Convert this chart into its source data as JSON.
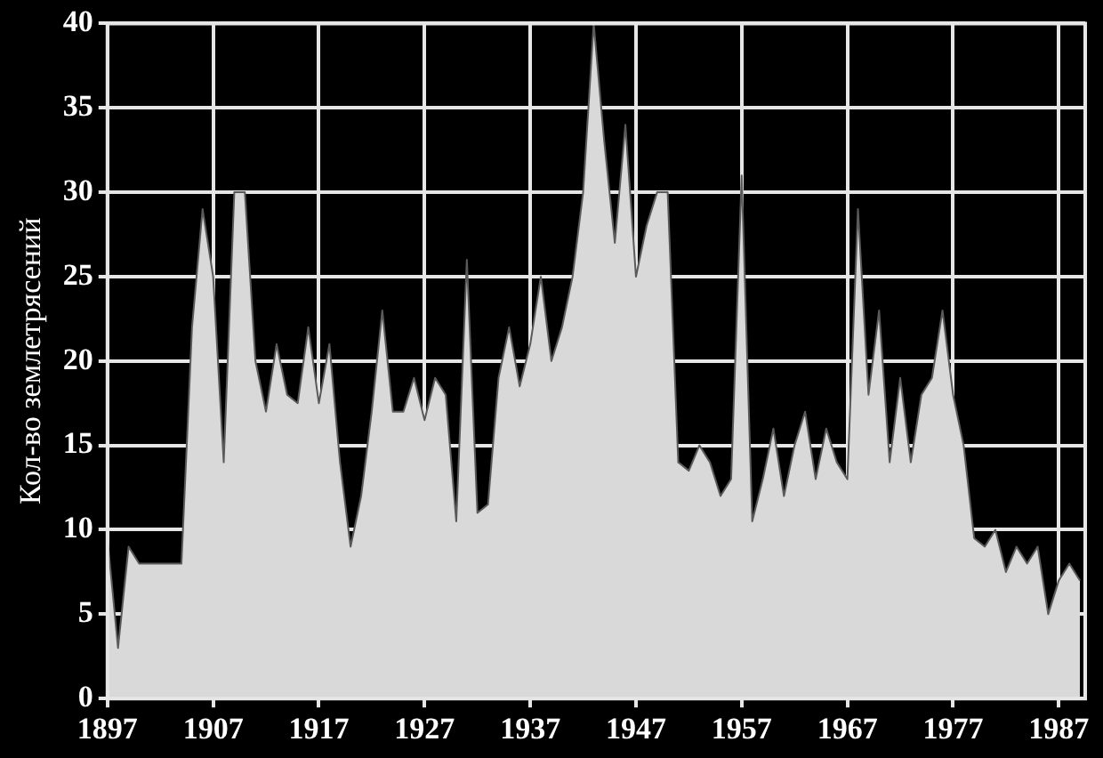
{
  "chart_data": {
    "type": "area",
    "ylabel": "Кол-во землетрясений",
    "x": [
      1897,
      1898,
      1899,
      1900,
      1901,
      1902,
      1903,
      1904,
      1905,
      1906,
      1907,
      1908,
      1909,
      1910,
      1911,
      1912,
      1913,
      1914,
      1915,
      1916,
      1917,
      1918,
      1919,
      1920,
      1921,
      1922,
      1923,
      1924,
      1925,
      1926,
      1927,
      1928,
      1929,
      1930,
      1931,
      1932,
      1933,
      1934,
      1935,
      1936,
      1937,
      1938,
      1939,
      1940,
      1941,
      1942,
      1943,
      1944,
      1945,
      1946,
      1947,
      1948,
      1949,
      1950,
      1951,
      1952,
      1953,
      1954,
      1955,
      1956,
      1957,
      1958,
      1959,
      1960,
      1961,
      1962,
      1963,
      1964,
      1965,
      1966,
      1967,
      1968,
      1969,
      1970,
      1971,
      1972,
      1973,
      1974,
      1975,
      1976,
      1977,
      1978,
      1979,
      1980,
      1981,
      1982,
      1983,
      1984,
      1985,
      1986,
      1987,
      1988,
      1989
    ],
    "series": [
      {
        "color": "#d9d9d9",
        "values": [
          9.5,
          3,
          9,
          8,
          8,
          8,
          8,
          8,
          22,
          29,
          25,
          14,
          30,
          30,
          20,
          17,
          21,
          18,
          17.5,
          22,
          17.5,
          21,
          14,
          9,
          12,
          17,
          23,
          17,
          17,
          19,
          16.5,
          19,
          18,
          10.5,
          26,
          11,
          11.5,
          19,
          22,
          18.5,
          21,
          25,
          20,
          22,
          25,
          30,
          40,
          33,
          27,
          34,
          25,
          28,
          30,
          30,
          14,
          13.5,
          15,
          14,
          12,
          13,
          31,
          10.5,
          13,
          16,
          12,
          15,
          17,
          13,
          16,
          14,
          13,
          29,
          18,
          23,
          14,
          19,
          14,
          18,
          19,
          23,
          18,
          15,
          9.5,
          9,
          10,
          7.5,
          9,
          8,
          9,
          5,
          7,
          8,
          7
        ]
      }
    ],
    "xlim": [
      1897,
      1989.5
    ],
    "xticks": [
      1897,
      1907,
      1917,
      1927,
      1937,
      1947,
      1957,
      1967,
      1977,
      1987
    ],
    "ylim": [
      0,
      40
    ],
    "yticks": [
      0,
      5,
      10,
      15,
      20,
      25,
      30,
      35,
      40
    ],
    "grid": true,
    "legend": false
  }
}
